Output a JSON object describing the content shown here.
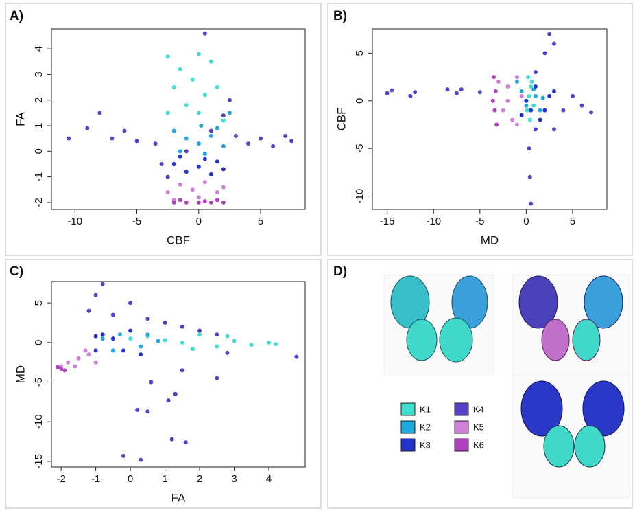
{
  "panels": [
    "A)",
    "B)",
    "C)",
    "D)"
  ],
  "chart_data": [
    {
      "type": "scatter",
      "xlabel": "CBF",
      "ylabel": "FA",
      "xlim": [
        -11.9,
        8.6
      ],
      "ylim": [
        -2.27,
        4.78
      ],
      "xticks": [
        -10,
        -5,
        0,
        5
      ],
      "yticks": [
        -2,
        -1,
        0,
        1,
        2,
        3,
        4
      ],
      "series": [
        {
          "name": "K1",
          "color": "#40e0d0",
          "x": [
            -2.5,
            -1.5,
            0,
            1,
            -2,
            -0.5,
            0.5,
            1.5,
            -1,
            0,
            2,
            -2.5
          ],
          "y": [
            3.7,
            3.2,
            3.8,
            3.5,
            2.5,
            2.8,
            2.2,
            2.5,
            1.8,
            1.5,
            1.2,
            1.5
          ]
        },
        {
          "name": "K2",
          "color": "#1ea8e0",
          "x": [
            -2,
            -1,
            0,
            1,
            2,
            -1.5,
            0.5,
            1.5,
            2.5,
            0.2
          ],
          "y": [
            0.8,
            0.5,
            0.3,
            0.6,
            0.2,
            0,
            -0.1,
            0.9,
            1.5,
            1
          ]
        },
        {
          "name": "K3",
          "color": "#2233cc",
          "x": [
            -2,
            -1,
            0,
            1,
            2,
            -1.5,
            0.5,
            1.5
          ],
          "y": [
            -0.5,
            -0.8,
            -0.6,
            -0.9,
            -0.7,
            -0.2,
            -0.3,
            -0.4
          ]
        },
        {
          "name": "K4",
          "color": "#5540c8",
          "x": [
            -10.5,
            -9,
            -8,
            -7,
            -6,
            -5,
            -3.5,
            -2.5,
            -1,
            1,
            2,
            3,
            4,
            5,
            6,
            7,
            7.5,
            0.5,
            2.5,
            -3
          ],
          "y": [
            0.5,
            0.9,
            1.5,
            0.5,
            0.8,
            0.4,
            0.3,
            -1,
            0,
            0.8,
            1.4,
            0.6,
            0.3,
            0.5,
            0.2,
            0.6,
            0.4,
            4.6,
            2,
            -0.5
          ]
        },
        {
          "name": "K5",
          "color": "#d080d8",
          "x": [
            -2.5,
            -1.5,
            -0.5,
            0.5,
            1.5,
            2,
            -2,
            0
          ],
          "y": [
            -1.6,
            -1.3,
            -1.5,
            -1.2,
            -1.6,
            -1.4,
            -1.9,
            -1.8
          ]
        },
        {
          "name": "K6",
          "color": "#b040c0",
          "x": [
            -2,
            -1,
            0,
            1,
            2,
            -1.5,
            0.5,
            1.5
          ],
          "y": [
            -2,
            -2,
            -2,
            -2,
            -2,
            -1.9,
            -1.95,
            -1.9
          ]
        }
      ]
    },
    {
      "type": "scatter",
      "xlabel": "MD",
      "ylabel": "CBF",
      "xlim": [
        -16.6,
        8.7
      ],
      "ylim": [
        -11.4,
        7.55
      ],
      "xticks": [
        -15,
        -10,
        -5,
        0,
        5
      ],
      "yticks": [
        -10,
        -5,
        0,
        5
      ],
      "series": [
        {
          "color": "#40e0d0",
          "x": [
            0.2,
            0.5,
            0.3,
            0.8,
            0.4,
            0.6,
            0.1
          ],
          "y": [
            2.5,
            1.5,
            0.5,
            -0.5,
            -2,
            2,
            -1
          ]
        },
        {
          "color": "#1ea8e0",
          "x": [
            -0.5,
            0,
            1,
            1.5,
            -1,
            0.8,
            1.8
          ],
          "y": [
            1,
            -0.5,
            0.5,
            -1,
            2,
            1.2,
            0.3
          ]
        },
        {
          "color": "#2233cc",
          "x": [
            0,
            1,
            2,
            2.5,
            -0.5,
            1.5,
            0.5,
            3
          ],
          "y": [
            0,
            1.5,
            -1,
            0.5,
            -1.5,
            -2,
            -1,
            1
          ]
        },
        {
          "color": "#5540c8",
          "x": [
            1,
            2,
            3,
            2.5,
            4,
            5,
            6,
            7,
            0.3,
            0.4,
            0.5,
            -15,
            -14.5,
            -12.5,
            -12,
            -8.5,
            -7.5,
            -7,
            -5,
            3,
            1
          ],
          "y": [
            3,
            5,
            6,
            7,
            -1,
            0.5,
            -0.5,
            -1.2,
            -5,
            -8,
            -10.8,
            0.8,
            1.1,
            0.5,
            0.9,
            1.2,
            0.8,
            1.2,
            0.9,
            -3,
            -3
          ]
        },
        {
          "color": "#d080d8",
          "x": [
            -3,
            -2,
            -1,
            -2.5,
            -1.5,
            -0.5,
            -2,
            -1
          ],
          "y": [
            2,
            1.5,
            2.5,
            -1,
            -2,
            0.5,
            0,
            -2.5
          ]
        },
        {
          "color": "#b040c0",
          "x": [
            -3.5,
            -3.3,
            -3.4,
            -3.2,
            -3.6
          ],
          "y": [
            2.5,
            1,
            -1,
            -2.5,
            0
          ]
        }
      ]
    },
    {
      "type": "scatter",
      "xlabel": "FA",
      "ylabel": "MD",
      "xlim": [
        -2.28,
        5.05
      ],
      "ylim": [
        -15.7,
        7.7
      ],
      "xticks": [
        -2,
        -1,
        0,
        1,
        2,
        3,
        4
      ],
      "yticks": [
        -15,
        -10,
        -5,
        0,
        5
      ],
      "series": [
        {
          "color": "#40e0d0",
          "x": [
            0,
            0.5,
            1,
            1.5,
            2,
            2.5,
            3,
            3.5,
            4,
            4.2,
            1.8,
            2.8
          ],
          "y": [
            0.5,
            0.8,
            0.3,
            0,
            1,
            -0.5,
            0.2,
            -0.3,
            0,
            -0.2,
            -0.8,
            0.8
          ]
        },
        {
          "color": "#1ea8e0",
          "x": [
            -0.8,
            -0.3,
            0.3,
            0.8,
            -0.5,
            0.5
          ],
          "y": [
            0.5,
            1,
            -0.5,
            0.2,
            -1,
            1
          ]
        },
        {
          "color": "#2233cc",
          "x": [
            -1,
            -0.5,
            0,
            -0.8,
            0.3,
            -0.2,
            -1
          ],
          "y": [
            -1,
            0.5,
            1.5,
            1,
            -1.5,
            -1,
            0.8
          ]
        },
        {
          "color": "#5540c8",
          "x": [
            -1,
            -0.8,
            -1.2,
            -0.5,
            0,
            0.5,
            1,
            1.5,
            2,
            2.5,
            -0.2,
            0.3,
            1.2,
            1.6,
            0.2,
            0.5,
            1.1,
            1.3,
            0.6,
            2.5,
            4.8,
            1.5,
            2.8
          ],
          "y": [
            6,
            7.4,
            4,
            3.5,
            5,
            3,
            2.5,
            2,
            1.5,
            1,
            -14.3,
            -14.8,
            -12.2,
            -12.6,
            -8.5,
            -8.7,
            -7.3,
            -6.5,
            -5,
            -4.5,
            -1.8,
            -3.5,
            -1.3
          ]
        },
        {
          "color": "#d080d8",
          "x": [
            -2,
            -1.8,
            -1.5,
            -1.2,
            -1,
            -1.6,
            -1.3
          ],
          "y": [
            -3,
            -2.5,
            -2,
            -1.5,
            -2.5,
            -3,
            -1
          ]
        },
        {
          "color": "#b040c0",
          "x": [
            -2,
            -1.9,
            -2.1
          ],
          "y": [
            -3.3,
            -3.5,
            -3.1
          ]
        }
      ]
    }
  ]
}
